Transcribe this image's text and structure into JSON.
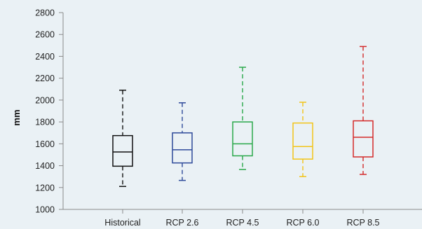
{
  "chart_data": {
    "type": "box",
    "ylabel": "mm",
    "ylim": [
      1000,
      2800
    ],
    "yticks": [
      "1000",
      "1200",
      "1400",
      "1600",
      "1800",
      "2000",
      "2200",
      "2400",
      "2600",
      "2800"
    ],
    "grid": false,
    "categories": [
      "Historical",
      "RCP 2.6",
      "RCP 4.5",
      "RCP 6.0",
      "RCP 8.5"
    ],
    "series": [
      {
        "category": "Historical",
        "whisker_low": 1210,
        "q1": 1395,
        "median": 1525,
        "q3": 1675,
        "whisker_high": 2090,
        "color": "#111111"
      },
      {
        "category": "RCP 2.6",
        "whisker_low": 1265,
        "q1": 1425,
        "median": 1545,
        "q3": 1700,
        "whisker_high": 1975,
        "color": "#2e4a9a"
      },
      {
        "category": "RCP 4.5",
        "whisker_low": 1365,
        "q1": 1490,
        "median": 1600,
        "q3": 1800,
        "whisker_high": 2300,
        "color": "#2aa84a"
      },
      {
        "category": "RCP 6.0",
        "whisker_low": 1300,
        "q1": 1460,
        "median": 1575,
        "q3": 1790,
        "whisker_high": 1980,
        "color": "#f2c418"
      },
      {
        "category": "RCP 8.5",
        "whisker_low": 1320,
        "q1": 1480,
        "median": 1660,
        "q3": 1810,
        "whisker_high": 2490,
        "color": "#d42a2a"
      }
    ]
  }
}
